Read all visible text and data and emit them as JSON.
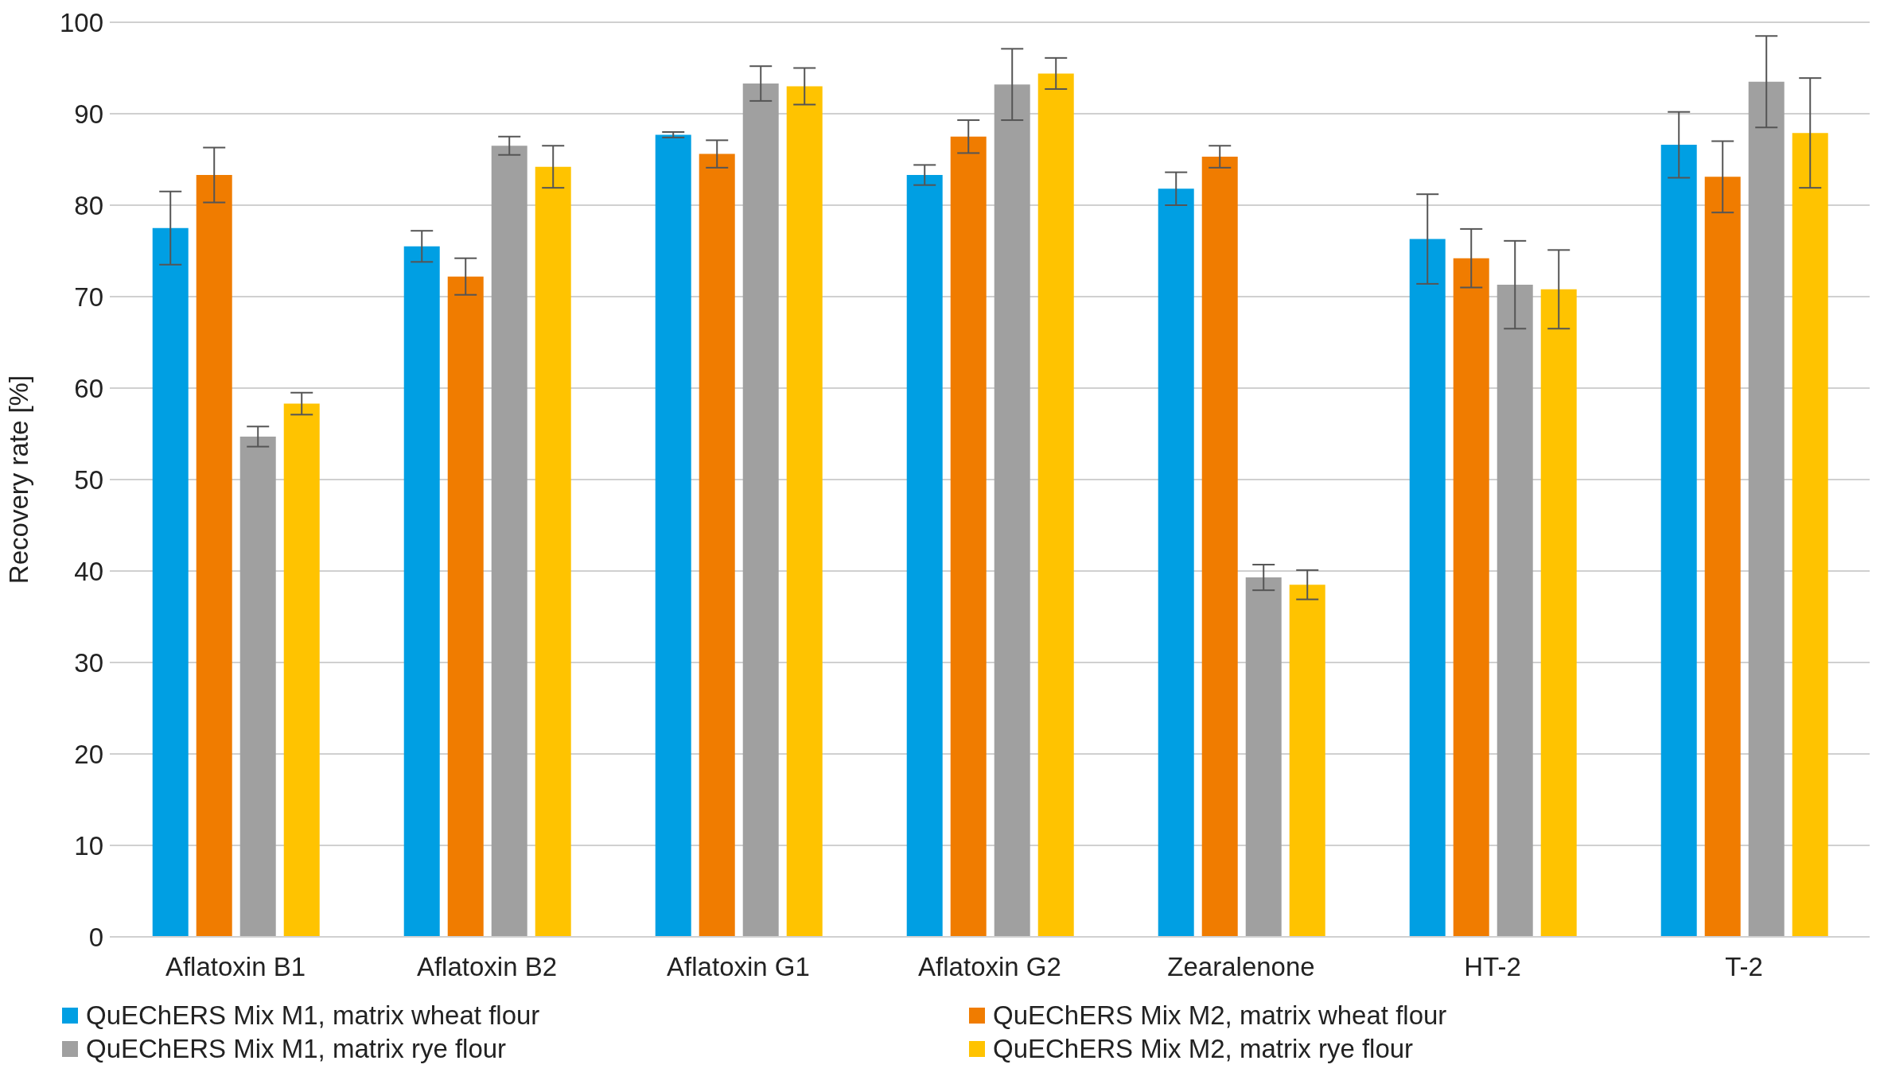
{
  "chart_data": {
    "type": "bar",
    "ylabel": "Recovery rate [%]",
    "categories": [
      "Aflatoxin B1",
      "Aflatoxin B2",
      "Aflatoxin G1",
      "Aflatoxin G2",
      "Zearalenone",
      "HT-2",
      "T-2"
    ],
    "series": [
      {
        "name": "QuEChERS Mix M1, matrix wheat flour",
        "color": "#009fe3",
        "values": [
          77.5,
          75.5,
          87.7,
          83.3,
          81.8,
          76.3,
          86.6
        ],
        "errors": [
          4,
          1.7,
          0.3,
          1.1,
          1.8,
          4.9,
          3.6
        ]
      },
      {
        "name": "QuEChERS Mix M2, matrix wheat flour",
        "color": "#f07c00",
        "values": [
          83.3,
          72.2,
          85.6,
          87.5,
          85.3,
          74.2,
          83.1
        ],
        "errors": [
          3,
          2,
          1.5,
          1.8,
          1.2,
          3.2,
          3.9
        ]
      },
      {
        "name": "QuEChERS Mix M1, matrix rye flour",
        "color": "#a0a0a0",
        "values": [
          54.7,
          86.5,
          93.3,
          93.2,
          39.3,
          71.3,
          93.5
        ],
        "errors": [
          1.1,
          1,
          1.9,
          3.9,
          1.4,
          4.8,
          5
        ]
      },
      {
        "name": "QuEChERS Mix M2, matrix  rye flour",
        "color": "#ffc300",
        "values": [
          58.3,
          84.2,
          93,
          94.4,
          38.5,
          70.8,
          87.9
        ],
        "errors": [
          1.2,
          2.3,
          2,
          1.7,
          1.6,
          4.3,
          6
        ]
      }
    ],
    "ylim": [
      0,
      100
    ],
    "yticks": [
      0,
      10,
      20,
      30,
      40,
      50,
      60,
      70,
      80,
      90,
      100
    ],
    "grid": "y",
    "legend": "bottom"
  }
}
